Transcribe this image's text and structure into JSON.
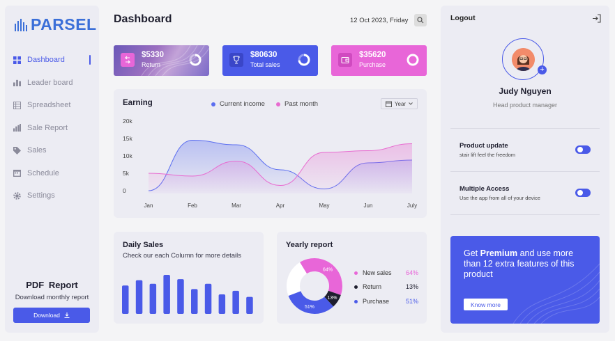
{
  "brand": {
    "name": "PARSEL"
  },
  "sidebar": {
    "items": [
      {
        "label": "Dashboard",
        "icon": "grid-icon",
        "active": true
      },
      {
        "label": "Leader board",
        "icon": "bar-chart-icon",
        "active": false
      },
      {
        "label": "Spreadsheet",
        "icon": "table-icon",
        "active": false
      },
      {
        "label": "Sale Report",
        "icon": "report-chart-icon",
        "active": false
      },
      {
        "label": "Sales",
        "icon": "tag-icon",
        "active": false
      },
      {
        "label": "Schedule",
        "icon": "calendar-icon",
        "active": false
      },
      {
        "label": "Settings",
        "icon": "gear-icon",
        "active": false
      }
    ],
    "pdf_title": "PDF  Report",
    "pdf_subtitle": "Download monthly report",
    "download_label": "Download"
  },
  "header": {
    "title": "Dashboard",
    "date": "12 Oct 2023, Friday"
  },
  "cards": [
    {
      "amount": "$5330",
      "label": "Return",
      "color": "#6a58b8"
    },
    {
      "amount": "$80630",
      "label": "Total sales",
      "color": "#4a5ae8"
    },
    {
      "amount": "$35620",
      "label": "Purchase",
      "color": "#e866d8"
    }
  ],
  "earning": {
    "title": "Earning",
    "year_label": "Year",
    "chart_data": {
      "type": "area",
      "categories": [
        "Jan",
        "Feb",
        "Mar",
        "Apr",
        "May",
        "Jun",
        "July"
      ],
      "yticks": [
        "20k",
        "15k",
        "10k",
        "5k",
        "0"
      ],
      "ylim": [
        0,
        20000
      ],
      "series": [
        {
          "name": "Current income",
          "color": "#5b6ef0",
          "values": [
            0,
            14500,
            13200,
            6000,
            500,
            8000,
            8800
          ]
        },
        {
          "name": "Past month",
          "color": "#e86bd0",
          "values": [
            5000,
            4200,
            8500,
            1500,
            11000,
            11500,
            13500
          ]
        }
      ]
    }
  },
  "daily": {
    "title": "Daily Sales",
    "subtitle": "Check our each Column for more details",
    "chart_data": {
      "type": "bar",
      "values": [
        8,
        9.5,
        8.5,
        11,
        9.8,
        7,
        8.5,
        5.5,
        6.5,
        4.8
      ],
      "color": "#4a5ae8"
    }
  },
  "yearly": {
    "title": "Yearly report",
    "chart_data": {
      "type": "pie",
      "slices": [
        {
          "name": "New sales",
          "value": 64,
          "label": "64%",
          "color": "#e866d8"
        },
        {
          "name": "Return",
          "value": 13,
          "label": "13%",
          "color": "#1e1e2e"
        },
        {
          "name": "Purchase",
          "value": 51,
          "label": "51%",
          "color": "#4a5ae8"
        }
      ]
    }
  },
  "profile": {
    "logout_label": "Logout",
    "name": "Judy Nguyen",
    "role": "Head product manager"
  },
  "settings": [
    {
      "title": "Product update",
      "subtitle": "stair lift feel the freedom",
      "on": true
    },
    {
      "title": "Multiple Access",
      "subtitle": "Use the app from all of your device",
      "on": true
    }
  ],
  "promo": {
    "prefix": "Get ",
    "bold": "Premium",
    "rest": " and use more than 12 extra features of this product",
    "button": "Know more"
  }
}
